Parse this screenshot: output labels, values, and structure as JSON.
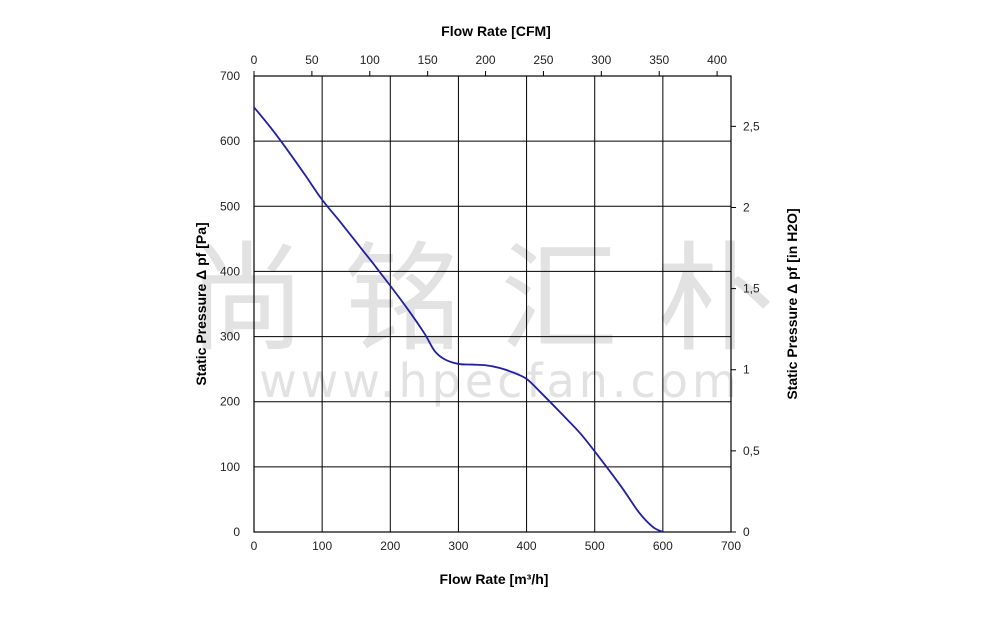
{
  "chart_data": {
    "type": "line",
    "xlabel_bottom": "Flow Rate [m³/h]",
    "xlabel_top": "Flow Rate [CFM]",
    "ylabel_left": "Static Pressure Δ pf [Pa]",
    "ylabel_right": "Static Pressure Δ pf [in H2O]",
    "xlim": [
      0,
      700
    ],
    "ylim": [
      0,
      700
    ],
    "x_ticks": [
      "0",
      "100",
      "200",
      "300",
      "400",
      "500",
      "600",
      "700"
    ],
    "y_ticks": [
      "0",
      "100",
      "200",
      "300",
      "400",
      "500",
      "600",
      "700"
    ],
    "top_ticks": [
      "0",
      "50",
      "100",
      "150",
      "200",
      "250",
      "300",
      "350",
      "400"
    ],
    "right_ticks": [
      "0",
      "0,5",
      "1",
      "1,5",
      "2",
      "2,5"
    ],
    "grid": true,
    "line_color": "#1f1fa8",
    "watermark": "尚铭汇朴",
    "watermark_url": "www.hpecfan.com",
    "series": [
      {
        "name": "",
        "x": [
          0,
          25,
          50,
          75,
          100,
          125,
          150,
          175,
          200,
          225,
          250,
          265,
          280,
          300,
          320,
          340,
          360,
          380,
          400,
          420,
          450,
          480,
          510,
          540,
          565,
          585,
          600
        ],
        "y": [
          652,
          620,
          585,
          548,
          510,
          478,
          445,
          412,
          378,
          343,
          305,
          278,
          265,
          258,
          257,
          256,
          252,
          245,
          235,
          215,
          183,
          150,
          110,
          68,
          30,
          8,
          0
        ]
      }
    ]
  }
}
